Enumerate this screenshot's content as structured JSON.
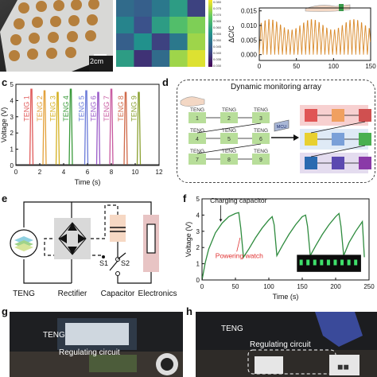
{
  "figure": {
    "a": {
      "scale_bar": "2cm"
    },
    "heatmap": {
      "cells": [
        [
          0.35,
          0.3,
          0.4,
          0.55,
          0.2
        ],
        [
          0.45,
          0.25,
          0.55,
          0.7,
          0.8
        ],
        [
          0.3,
          0.5,
          0.2,
          0.4,
          0.85
        ],
        [
          0.55,
          0.15,
          0.35,
          0.85,
          0.95
        ]
      ],
      "colorbar_ticks": [
        "0.080",
        "0.075",
        "0.070",
        "0.065",
        "0.060",
        "0.055",
        "0.050",
        "0.045",
        "0.040",
        "0.035",
        "0.030"
      ]
    },
    "b": {
      "ylabel": "ΔC/C",
      "yticks": [
        "0.015",
        "0.010",
        "0.005",
        "0.000"
      ],
      "xticks": [
        "0",
        "50",
        "100",
        "150"
      ]
    },
    "c": {
      "label": "c",
      "ylabel": "Voltage (V)",
      "xlabel": "Time (s)",
      "yticks": [
        "0",
        "1",
        "2",
        "3",
        "4",
        "5"
      ],
      "xticks": [
        "0",
        "2",
        "4",
        "6",
        "8",
        "10",
        "12"
      ]
    },
    "d": {
      "label": "d",
      "title": "Dynamic monitoring array",
      "teng_word": "TENG",
      "cell_numbers": [
        "1",
        "2",
        "3",
        "4",
        "5",
        "6",
        "7",
        "8",
        "9"
      ],
      "mcu_label": "MCU"
    },
    "e": {
      "label": "e",
      "teng": "TENG",
      "rectifier": "Rectifier",
      "capacitor": "Capacitor",
      "electronics": "Electronics",
      "s1": "S1",
      "s2": "S2"
    },
    "f": {
      "label": "f",
      "ylabel": "Voltage (V)",
      "xlabel": "Time (s)",
      "annotation_charging": "Charging capacitor",
      "annotation_powering": "Powering watch",
      "yticks": [
        "0",
        "1",
        "2",
        "3",
        "4",
        "5"
      ],
      "xticks": [
        "0",
        "50",
        "100",
        "150",
        "200",
        "250"
      ]
    },
    "g": {
      "label": "g",
      "teng": "TENG",
      "circuit": "Regulating circuit"
    },
    "h": {
      "label": "h",
      "teng": "TENG",
      "circuit": "Regulating circuit"
    }
  },
  "chart_data": [
    {
      "type": "line",
      "panel": "b",
      "ylabel": "ΔC/C",
      "xlim": [
        0,
        150
      ],
      "ylim": [
        -0.002,
        0.016
      ],
      "period": 5.2,
      "amplitude_range": [
        0.0,
        0.013
      ],
      "color": "#d98a2b"
    },
    {
      "type": "line",
      "panel": "c",
      "xlabel": "Time (s)",
      "ylabel": "Voltage (V)",
      "xlim": [
        0,
        12
      ],
      "ylim": [
        0,
        5
      ],
      "series": [
        {
          "name": "TENG 1",
          "peak_x": 1.3,
          "peak_y": 4.7,
          "color": "#e05a5a"
        },
        {
          "name": "TENG 2",
          "peak_x": 2.4,
          "peak_y": 4.6,
          "color": "#e3a13a"
        },
        {
          "name": "TENG 3",
          "peak_x": 3.5,
          "peak_y": 4.5,
          "color": "#d4b020"
        },
        {
          "name": "TENG 4",
          "peak_x": 4.6,
          "peak_y": 4.7,
          "color": "#3a9a3a"
        },
        {
          "name": "TENG 5",
          "peak_x": 5.9,
          "peak_y": 4.6,
          "color": "#6a7ad8"
        },
        {
          "name": "TENG 6",
          "peak_x": 6.9,
          "peak_y": 4.5,
          "color": "#9a5ac8"
        },
        {
          "name": "TENG 7",
          "peak_x": 8.0,
          "peak_y": 4.7,
          "color": "#c85aa0"
        },
        {
          "name": "TENG 8",
          "peak_x": 9.2,
          "peak_y": 4.5,
          "color": "#d06a4a"
        },
        {
          "name": "TENG 9",
          "peak_x": 10.3,
          "peak_y": 4.5,
          "color": "#8aa030"
        }
      ]
    },
    {
      "type": "line",
      "panel": "f",
      "xlabel": "Time (s)",
      "ylabel": "Voltage (V)",
      "xlim": [
        0,
        250
      ],
      "ylim": [
        0,
        5
      ],
      "x": [
        0,
        5,
        10,
        20,
        30,
        40,
        50,
        55,
        58,
        62,
        70,
        80,
        90,
        100,
        105,
        108,
        112,
        120,
        130,
        140,
        150,
        155,
        158,
        162,
        170,
        180,
        190,
        200,
        205,
        208,
        212,
        220,
        230,
        240,
        243
      ],
      "y": [
        0,
        1.1,
        1.9,
        2.9,
        3.5,
        3.9,
        4.1,
        4.15,
        3.2,
        1.4,
        1.9,
        2.6,
        3.2,
        3.7,
        3.9,
        3.4,
        1.5,
        2.1,
        2.8,
        3.4,
        3.9,
        4.0,
        3.3,
        1.5,
        2.1,
        2.8,
        3.4,
        3.9,
        4.1,
        3.3,
        1.5,
        2.3,
        3.0,
        3.6,
        1.4
      ],
      "color": "#2e8b3e"
    }
  ]
}
